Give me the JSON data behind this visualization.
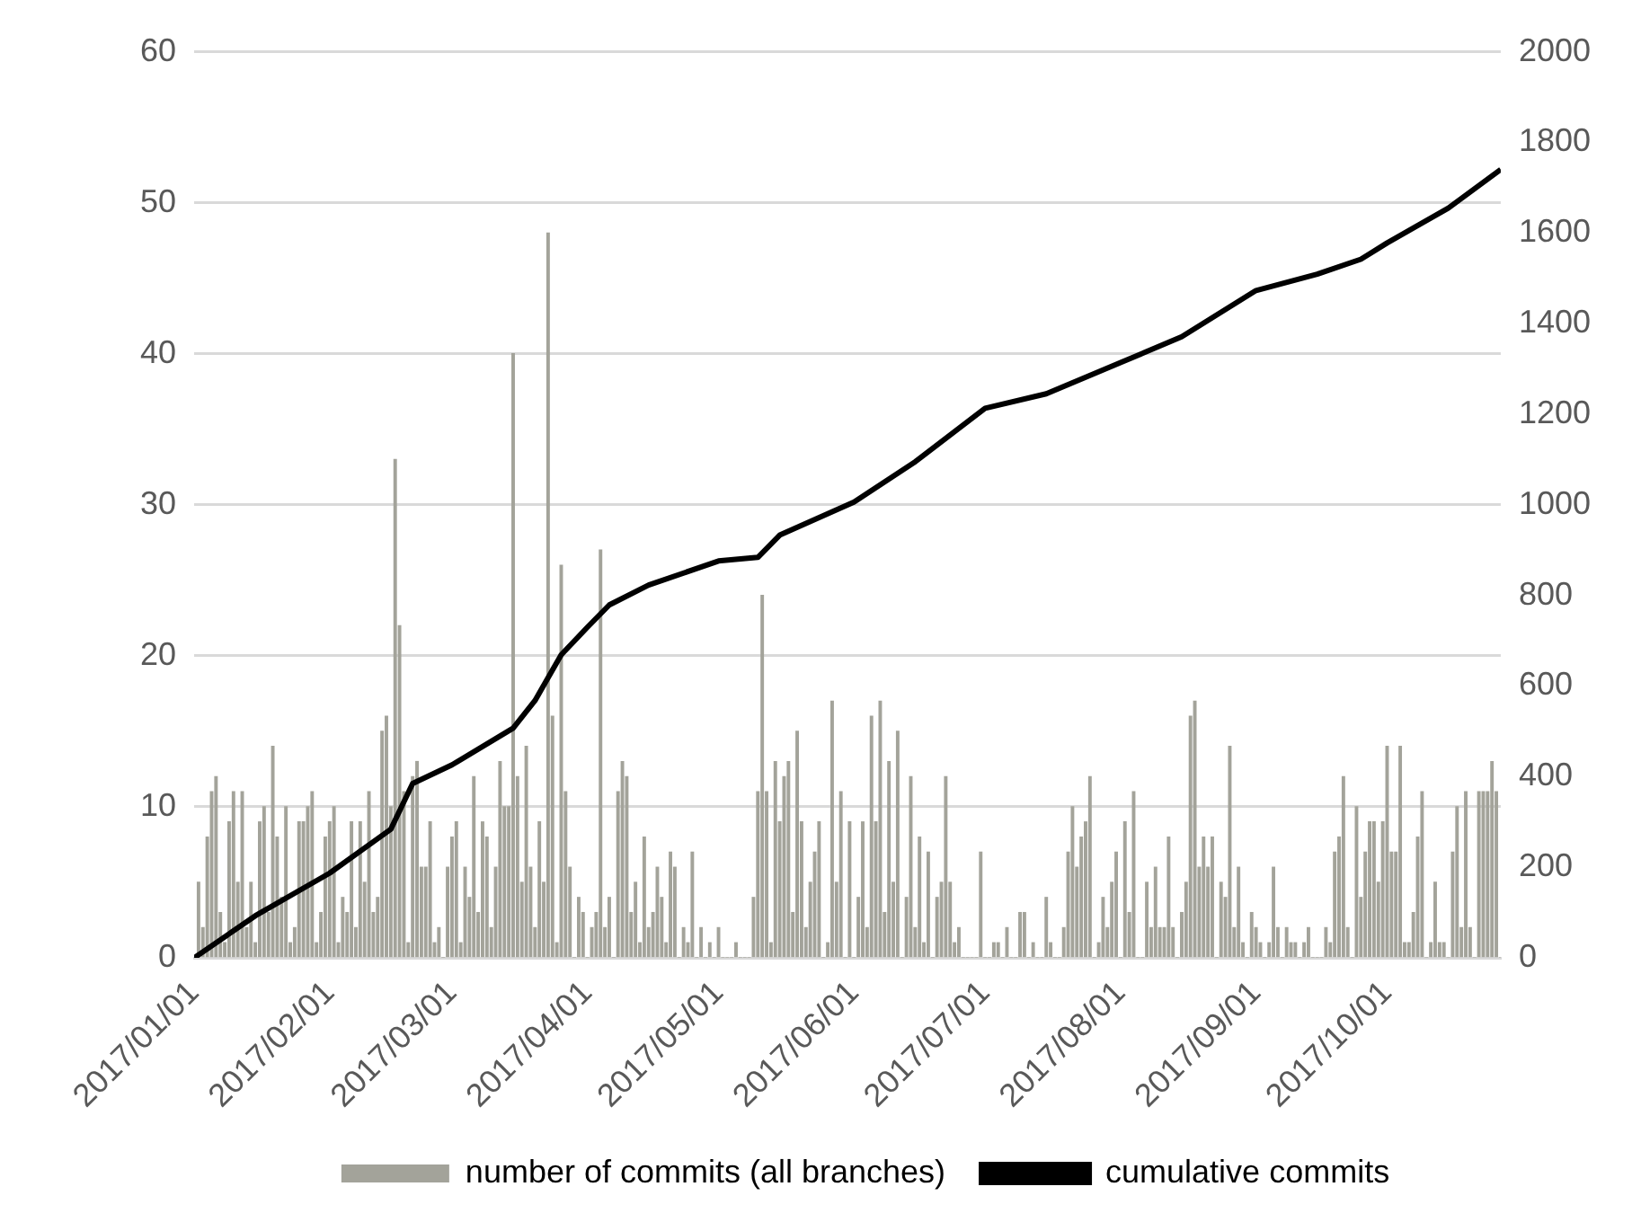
{
  "chart_data": {
    "type": "bar",
    "xlim": [
      "2017-01-01",
      "2017-10-27"
    ],
    "xticks": [
      {
        "value": "2017-01-01",
        "label": "2017/01/01"
      },
      {
        "value": "2017-02-01",
        "label": "2017/02/01"
      },
      {
        "value": "2017-03-01",
        "label": "2017/03/01"
      },
      {
        "value": "2017-04-01",
        "label": "2017/04/01"
      },
      {
        "value": "2017-05-01",
        "label": "2017/05/01"
      },
      {
        "value": "2017-06-01",
        "label": "2017/06/01"
      },
      {
        "value": "2017-07-01",
        "label": "2017/07/01"
      },
      {
        "value": "2017-08-01",
        "label": "2017/08/01"
      },
      {
        "value": "2017-09-01",
        "label": "2017/09/01"
      },
      {
        "value": "2017-10-01",
        "label": "2017/10/01"
      }
    ],
    "ylim": [
      0,
      60
    ],
    "yticks": [
      0,
      10,
      20,
      30,
      40,
      50,
      60
    ],
    "y2lim": [
      0,
      2000
    ],
    "y2ticks": [
      0,
      200,
      400,
      600,
      800,
      1000,
      1200,
      1400,
      1600,
      1800,
      2000
    ],
    "grid": "y",
    "legend": "bottom",
    "series": [
      {
        "name": "number of commits (all branches)",
        "color": "#a3a39a",
        "x": [
          "2017-01-01",
          "2017-01-02",
          "2017-01-03",
          "2017-01-04",
          "2017-01-05",
          "2017-01-06",
          "2017-01-07",
          "2017-01-08",
          "2017-01-09",
          "2017-01-10",
          "2017-01-11",
          "2017-01-12",
          "2017-01-13",
          "2017-01-14",
          "2017-01-15",
          "2017-01-16",
          "2017-01-17",
          "2017-01-18",
          "2017-01-19",
          "2017-01-20",
          "2017-01-21",
          "2017-01-22",
          "2017-01-23",
          "2017-01-24",
          "2017-01-25",
          "2017-01-26",
          "2017-01-27",
          "2017-01-28",
          "2017-01-29",
          "2017-01-30",
          "2017-01-31",
          "2017-02-01",
          "2017-02-02",
          "2017-02-03",
          "2017-02-04",
          "2017-02-05",
          "2017-02-06",
          "2017-02-07",
          "2017-02-08",
          "2017-02-09",
          "2017-02-10",
          "2017-02-11",
          "2017-02-12",
          "2017-02-13",
          "2017-02-14",
          "2017-02-15",
          "2017-02-16",
          "2017-02-17",
          "2017-02-18",
          "2017-02-19",
          "2017-02-20",
          "2017-02-21",
          "2017-02-22",
          "2017-02-23",
          "2017-02-24",
          "2017-02-25",
          "2017-02-26",
          "2017-02-27",
          "2017-02-28",
          "2017-03-01",
          "2017-03-02",
          "2017-03-03",
          "2017-03-04",
          "2017-03-05",
          "2017-03-06",
          "2017-03-07",
          "2017-03-08",
          "2017-03-09",
          "2017-03-10",
          "2017-03-11",
          "2017-03-12",
          "2017-03-13",
          "2017-03-14",
          "2017-03-15",
          "2017-03-16",
          "2017-03-17",
          "2017-03-18",
          "2017-03-19",
          "2017-03-20",
          "2017-03-21",
          "2017-03-22",
          "2017-03-23",
          "2017-03-24",
          "2017-03-25",
          "2017-03-26",
          "2017-03-27",
          "2017-03-28",
          "2017-03-29",
          "2017-03-30",
          "2017-03-31",
          "2017-04-01",
          "2017-04-02",
          "2017-04-03",
          "2017-04-04",
          "2017-04-05",
          "2017-04-06",
          "2017-04-07",
          "2017-04-08",
          "2017-04-09",
          "2017-04-10",
          "2017-04-11",
          "2017-04-12",
          "2017-04-13",
          "2017-04-14",
          "2017-04-15",
          "2017-04-16",
          "2017-04-17",
          "2017-04-18",
          "2017-04-19",
          "2017-04-20",
          "2017-04-21",
          "2017-04-22",
          "2017-04-23",
          "2017-04-24",
          "2017-04-25",
          "2017-04-26",
          "2017-04-27",
          "2017-04-28",
          "2017-04-29",
          "2017-04-30",
          "2017-05-01",
          "2017-05-02",
          "2017-05-03",
          "2017-05-04",
          "2017-05-05",
          "2017-05-06",
          "2017-05-07",
          "2017-05-08",
          "2017-05-09",
          "2017-05-10",
          "2017-05-11",
          "2017-05-12",
          "2017-05-13",
          "2017-05-14",
          "2017-05-15",
          "2017-05-16",
          "2017-05-17",
          "2017-05-18",
          "2017-05-19",
          "2017-05-20",
          "2017-05-21",
          "2017-05-22",
          "2017-05-23",
          "2017-05-24",
          "2017-05-25",
          "2017-05-26",
          "2017-05-27",
          "2017-05-28",
          "2017-05-29",
          "2017-05-30",
          "2017-05-31",
          "2017-06-01",
          "2017-06-02",
          "2017-06-03",
          "2017-06-04",
          "2017-06-05",
          "2017-06-06",
          "2017-06-07",
          "2017-06-08",
          "2017-06-09",
          "2017-06-10",
          "2017-06-11",
          "2017-06-12",
          "2017-06-13",
          "2017-06-14",
          "2017-06-15",
          "2017-06-16",
          "2017-06-17",
          "2017-06-18",
          "2017-06-19",
          "2017-06-20",
          "2017-06-21",
          "2017-06-22",
          "2017-06-23",
          "2017-06-24",
          "2017-06-25",
          "2017-06-26",
          "2017-06-27",
          "2017-06-28",
          "2017-06-29",
          "2017-06-30",
          "2017-07-01",
          "2017-07-02",
          "2017-07-03",
          "2017-07-04",
          "2017-07-05",
          "2017-07-06",
          "2017-07-07",
          "2017-07-08",
          "2017-07-09",
          "2017-07-10",
          "2017-07-11",
          "2017-07-12",
          "2017-07-13",
          "2017-07-14",
          "2017-07-15",
          "2017-07-16",
          "2017-07-17",
          "2017-07-18",
          "2017-07-19",
          "2017-07-20",
          "2017-07-21",
          "2017-07-22",
          "2017-07-23",
          "2017-07-24",
          "2017-07-25",
          "2017-07-26",
          "2017-07-27",
          "2017-07-28",
          "2017-07-29",
          "2017-07-30",
          "2017-07-31",
          "2017-08-01",
          "2017-08-02",
          "2017-08-03",
          "2017-08-04",
          "2017-08-05",
          "2017-08-06",
          "2017-08-07",
          "2017-08-08",
          "2017-08-09",
          "2017-08-10",
          "2017-08-11",
          "2017-08-12",
          "2017-08-13",
          "2017-08-14",
          "2017-08-15",
          "2017-08-16",
          "2017-08-17",
          "2017-08-18",
          "2017-08-19",
          "2017-08-20",
          "2017-08-21",
          "2017-08-22",
          "2017-08-23",
          "2017-08-24",
          "2017-08-25",
          "2017-08-26",
          "2017-08-27",
          "2017-08-28",
          "2017-08-29",
          "2017-08-30",
          "2017-08-31",
          "2017-09-01",
          "2017-09-02",
          "2017-09-03",
          "2017-09-04",
          "2017-09-05",
          "2017-09-06",
          "2017-09-07",
          "2017-09-08",
          "2017-09-09",
          "2017-09-10",
          "2017-09-11",
          "2017-09-12",
          "2017-09-13",
          "2017-09-14",
          "2017-09-15",
          "2017-09-16",
          "2017-09-17",
          "2017-09-18",
          "2017-09-19",
          "2017-09-20",
          "2017-09-21",
          "2017-09-22",
          "2017-09-23",
          "2017-09-24",
          "2017-09-25",
          "2017-09-26",
          "2017-09-27",
          "2017-09-28",
          "2017-09-29",
          "2017-09-30",
          "2017-10-01",
          "2017-10-02",
          "2017-10-03",
          "2017-10-04",
          "2017-10-05",
          "2017-10-06",
          "2017-10-07",
          "2017-10-08",
          "2017-10-09",
          "2017-10-10",
          "2017-10-11",
          "2017-10-12",
          "2017-10-13",
          "2017-10-14",
          "2017-10-15",
          "2017-10-16",
          "2017-10-17",
          "2017-10-18",
          "2017-10-19",
          "2017-10-20",
          "2017-10-21",
          "2017-10-22",
          "2017-10-23",
          "2017-10-24",
          "2017-10-25",
          "2017-10-26",
          "2017-10-27"
        ],
        "values": [
          0,
          5,
          2,
          8,
          11,
          12,
          3,
          1,
          9,
          11,
          5,
          11,
          2,
          5,
          1,
          9,
          10,
          3,
          14,
          8,
          4,
          10,
          1,
          2,
          9,
          9,
          10,
          11,
          1,
          3,
          8,
          9,
          10,
          1,
          4,
          3,
          9,
          2,
          9,
          5,
          11,
          3,
          4,
          15,
          16,
          10,
          33,
          22,
          11,
          1,
          12,
          13,
          6,
          6,
          9,
          1,
          2,
          0,
          6,
          8,
          9,
          1,
          6,
          4,
          12,
          3,
          9,
          8,
          2,
          6,
          13,
          10,
          10,
          40,
          12,
          5,
          14,
          6,
          2,
          9,
          5,
          48,
          16,
          1,
          26,
          11,
          6,
          0,
          4,
          3,
          0,
          2,
          3,
          27,
          2,
          4,
          0,
          11,
          13,
          12,
          3,
          5,
          1,
          8,
          2,
          3,
          6,
          4,
          1,
          7,
          6,
          0,
          2,
          1,
          7,
          0,
          2,
          0,
          1,
          0,
          2,
          0,
          0,
          0,
          1,
          0,
          0,
          0,
          4,
          11,
          24,
          11,
          1,
          13,
          9,
          12,
          13,
          3,
          15,
          9,
          2,
          5,
          7,
          9,
          0,
          1,
          17,
          5,
          11,
          0,
          9,
          0,
          4,
          9,
          2,
          16,
          9,
          17,
          3,
          13,
          5,
          15,
          0,
          4,
          12,
          2,
          8,
          1,
          7,
          0,
          4,
          5,
          12,
          5,
          1,
          2,
          0,
          0,
          0,
          0,
          7,
          0,
          0,
          1,
          1,
          0,
          2,
          0,
          0,
          3,
          3,
          0,
          1,
          0,
          0,
          4,
          1,
          0,
          0,
          2,
          7,
          10,
          6,
          8,
          9,
          12,
          0,
          1,
          4,
          2,
          5,
          7,
          0,
          9,
          3,
          11,
          0,
          0,
          5,
          2,
          6,
          2,
          2,
          8,
          2,
          0,
          3,
          5,
          16,
          17,
          6,
          8,
          6,
          8,
          0,
          5,
          4,
          14,
          2,
          6,
          1,
          0,
          3,
          2,
          1,
          0,
          1,
          6,
          2,
          0,
          2,
          1,
          1,
          0,
          1,
          2,
          0,
          0,
          0,
          2,
          1,
          7,
          8,
          12,
          2,
          0,
          10,
          4,
          7,
          9,
          9,
          5,
          9,
          14,
          7,
          7,
          14,
          1,
          1,
          3,
          8,
          11,
          0,
          1,
          5,
          1,
          1,
          0,
          7,
          10,
          2,
          11,
          2,
          0,
          11,
          11,
          11,
          13,
          11,
          0
        ]
      },
      {
        "name": "cumulative commits",
        "type": "line",
        "axis": "y2",
        "color": "#000000",
        "x": [
          "2017-01-01",
          "2017-01-15",
          "2017-02-01",
          "2017-02-15",
          "2017-02-20",
          "2017-03-01",
          "2017-03-15",
          "2017-03-20",
          "2017-03-26",
          "2017-04-01",
          "2017-04-06",
          "2017-04-15",
          "2017-05-01",
          "2017-05-10",
          "2017-05-15",
          "2017-06-01",
          "2017-06-15",
          "2017-07-01",
          "2017-07-15",
          "2017-08-01",
          "2017-08-15",
          "2017-09-01",
          "2017-09-15",
          "2017-09-25",
          "2017-10-01",
          "2017-10-15",
          "2017-10-27"
        ],
        "values": [
          0,
          93,
          187,
          284,
          385,
          426,
          507,
          568,
          669,
          730,
          779,
          823,
          876,
          884,
          933,
          1006,
          1095,
          1213,
          1245,
          1314,
          1371,
          1473,
          1509,
          1542,
          1578,
          1655,
          1740
        ]
      }
    ]
  }
}
